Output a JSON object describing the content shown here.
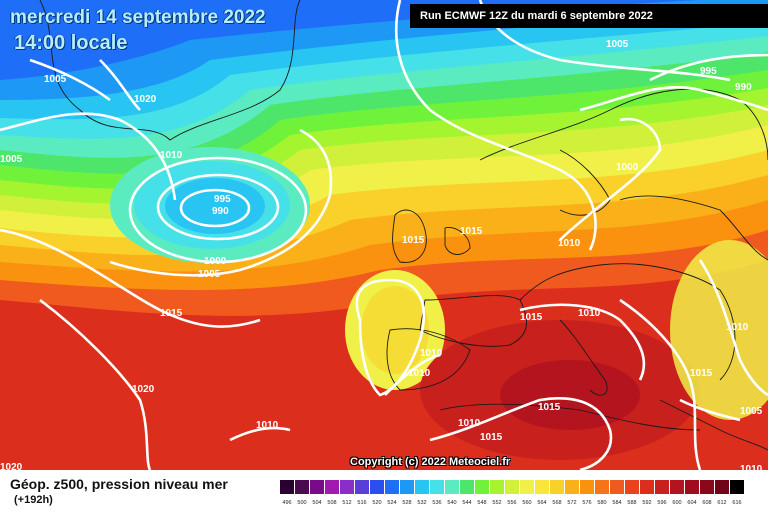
{
  "header": {
    "date": "mercredi 14 septembre 2022",
    "time": "14:00 locale",
    "run": "Run ECMWF 12Z du mardi 6 septembre 2022"
  },
  "footer": {
    "parameter": "Géop. z500, pression niveau mer",
    "forecast_hour": "(+192h)",
    "copyright": "Copyright (c) 2022 Meteociel.fr"
  },
  "legend": {
    "values": [
      "496",
      "500",
      "504",
      "508",
      "512",
      "516",
      "520",
      "524",
      "528",
      "532",
      "536",
      "540",
      "544",
      "548",
      "552",
      "556",
      "560",
      "564",
      "568",
      "572",
      "576",
      "580",
      "584",
      "588",
      "592",
      "596",
      "600",
      "604",
      "608",
      "612",
      "616"
    ],
    "colors": [
      "#2a0030",
      "#4a0a52",
      "#7a0a8a",
      "#a01ab0",
      "#8a2ec8",
      "#5a3ed8",
      "#2a4ef0",
      "#1e6ef8",
      "#1e98f5",
      "#28c4f2",
      "#46e0e8",
      "#5aecc0",
      "#4ee66a",
      "#70f23a",
      "#a4f530",
      "#d0f03a",
      "#f0f048",
      "#fae63a",
      "#fad02a",
      "#fab018",
      "#fa9210",
      "#f5741a",
      "#f05a1e",
      "#e8421e",
      "#dc2e1c",
      "#c8201c",
      "#b4141e",
      "#a00c1e",
      "#8a081c",
      "#700418",
      "#000000"
    ]
  },
  "pressure_labels": [
    {
      "value": "1005"
    },
    {
      "value": "1020"
    },
    {
      "value": "1010"
    },
    {
      "value": "1005"
    },
    {
      "value": "995"
    },
    {
      "value": "990"
    },
    {
      "value": "1000"
    },
    {
      "value": "1005"
    },
    {
      "value": "1015"
    },
    {
      "value": "1020"
    },
    {
      "value": "1010"
    },
    {
      "value": "1020"
    },
    {
      "value": "1015"
    },
    {
      "value": "1015"
    },
    {
      "value": "1010"
    },
    {
      "value": "1010"
    },
    {
      "value": "1010"
    },
    {
      "value": "1015"
    },
    {
      "value": "1015"
    },
    {
      "value": "1010"
    },
    {
      "value": "1005"
    },
    {
      "value": "995"
    },
    {
      "value": "990"
    },
    {
      "value": "1000"
    },
    {
      "value": "1010"
    },
    {
      "value": "1015"
    },
    {
      "value": "1010"
    },
    {
      "value": "1015"
    },
    {
      "value": "1005"
    },
    {
      "value": "1010"
    }
  ]
}
